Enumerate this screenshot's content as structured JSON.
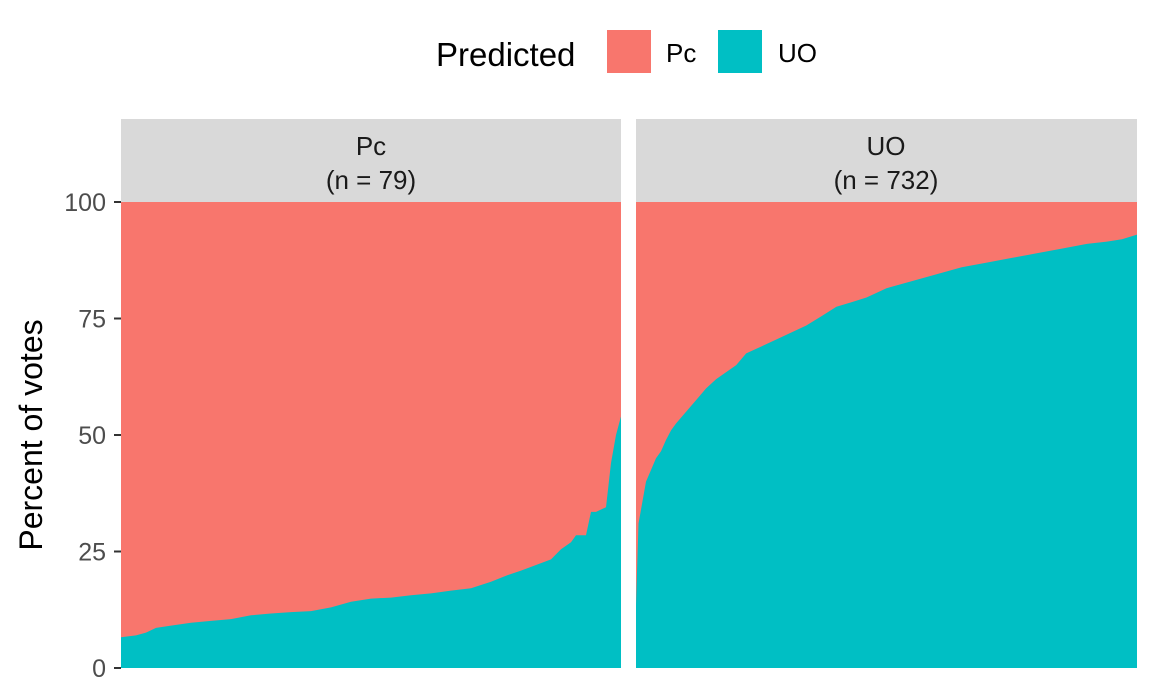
{
  "chart_data": {
    "type": "area",
    "stacked": true,
    "legend": {
      "title": "Predicted",
      "position": "top",
      "items": [
        {
          "label": "Pc",
          "color": "#F8766D"
        },
        {
          "label": "UO",
          "color": "#00BFC4"
        }
      ]
    },
    "ylabel": "Percent of votes",
    "xlabel": "",
    "ylim": [
      0,
      120
    ],
    "y_ticks": [
      0,
      25,
      50,
      75,
      100
    ],
    "grid": false,
    "panels": [
      {
        "strip_title": "Pc",
        "strip_n": "(n = 79)",
        "n": 79,
        "uo_percent_curve": [
          [
            0.0,
            6.6
          ],
          [
            0.03,
            7.0
          ],
          [
            0.05,
            7.6
          ],
          [
            0.07,
            8.6
          ],
          [
            0.1,
            9.1
          ],
          [
            0.14,
            9.7
          ],
          [
            0.18,
            10.1
          ],
          [
            0.22,
            10.5
          ],
          [
            0.26,
            11.3
          ],
          [
            0.3,
            11.7
          ],
          [
            0.34,
            12.0
          ],
          [
            0.38,
            12.2
          ],
          [
            0.42,
            13.0
          ],
          [
            0.46,
            14.2
          ],
          [
            0.5,
            14.9
          ],
          [
            0.54,
            15.1
          ],
          [
            0.58,
            15.6
          ],
          [
            0.62,
            16.0
          ],
          [
            0.66,
            16.6
          ],
          [
            0.7,
            17.1
          ],
          [
            0.74,
            18.5
          ],
          [
            0.77,
            19.8
          ],
          [
            0.8,
            20.9
          ],
          [
            0.83,
            22.1
          ],
          [
            0.86,
            23.3
          ],
          [
            0.88,
            25.5
          ],
          [
            0.9,
            27.0
          ],
          [
            0.91,
            28.5
          ],
          [
            0.93,
            28.5
          ],
          [
            0.94,
            33.5
          ],
          [
            0.95,
            33.5
          ],
          [
            0.97,
            34.5
          ],
          [
            0.98,
            44.0
          ],
          [
            0.99,
            50.0
          ],
          [
            1.0,
            54.0
          ]
        ]
      },
      {
        "strip_title": "UO",
        "strip_n": "(n = 732)",
        "n": 732,
        "uo_percent_curve": [
          [
            0.0,
            13.5
          ],
          [
            0.005,
            31.0
          ],
          [
            0.01,
            34.0
          ],
          [
            0.015,
            37.0
          ],
          [
            0.02,
            40.0
          ],
          [
            0.03,
            42.5
          ],
          [
            0.04,
            45.0
          ],
          [
            0.05,
            46.5
          ],
          [
            0.06,
            49.0
          ],
          [
            0.07,
            51.0
          ],
          [
            0.08,
            52.5
          ],
          [
            0.1,
            55.0
          ],
          [
            0.12,
            57.5
          ],
          [
            0.14,
            60.0
          ],
          [
            0.16,
            62.0
          ],
          [
            0.18,
            63.5
          ],
          [
            0.2,
            65.0
          ],
          [
            0.22,
            67.5
          ],
          [
            0.25,
            69.0
          ],
          [
            0.28,
            70.5
          ],
          [
            0.31,
            72.0
          ],
          [
            0.34,
            73.5
          ],
          [
            0.37,
            75.5
          ],
          [
            0.4,
            77.5
          ],
          [
            0.43,
            78.5
          ],
          [
            0.46,
            79.5
          ],
          [
            0.5,
            81.5
          ],
          [
            0.55,
            83.0
          ],
          [
            0.6,
            84.5
          ],
          [
            0.65,
            86.0
          ],
          [
            0.7,
            87.0
          ],
          [
            0.75,
            88.0
          ],
          [
            0.8,
            89.0
          ],
          [
            0.85,
            90.0
          ],
          [
            0.9,
            91.0
          ],
          [
            0.94,
            91.5
          ],
          [
            0.97,
            92.0
          ],
          [
            1.0,
            93.0
          ]
        ]
      }
    ]
  }
}
